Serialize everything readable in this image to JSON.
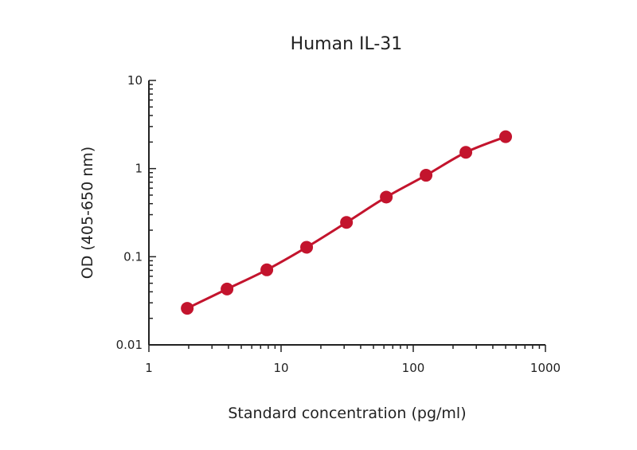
{
  "chart_data": {
    "type": "scatter",
    "title": "Human IL-31",
    "xlabel": "Standard concentration (pg/ml)",
    "ylabel": "OD (405-650 nm)",
    "x_scale": "log",
    "y_scale": "log",
    "xlim": [
      1,
      1000
    ],
    "ylim": [
      0.01,
      10
    ],
    "x_ticks": [
      1,
      10,
      100,
      1000
    ],
    "x_tick_labels": [
      "1",
      "10",
      "100",
      "1000"
    ],
    "y_ticks": [
      0.01,
      0.1,
      1,
      10
    ],
    "y_tick_labels": [
      "0.01",
      "0.1",
      "1",
      "10"
    ],
    "grid": false,
    "legend": "none",
    "series": [
      {
        "color": "#c3142d",
        "points": [
          {
            "x": 1.95,
            "y": 0.026
          },
          {
            "x": 3.9,
            "y": 0.043
          },
          {
            "x": 7.8,
            "y": 0.071
          },
          {
            "x": 15.6,
            "y": 0.128
          },
          {
            "x": 31.25,
            "y": 0.245
          },
          {
            "x": 62.5,
            "y": 0.475
          },
          {
            "x": 125,
            "y": 0.84
          },
          {
            "x": 250,
            "y": 1.53
          },
          {
            "x": 500,
            "y": 2.3
          }
        ]
      }
    ]
  }
}
